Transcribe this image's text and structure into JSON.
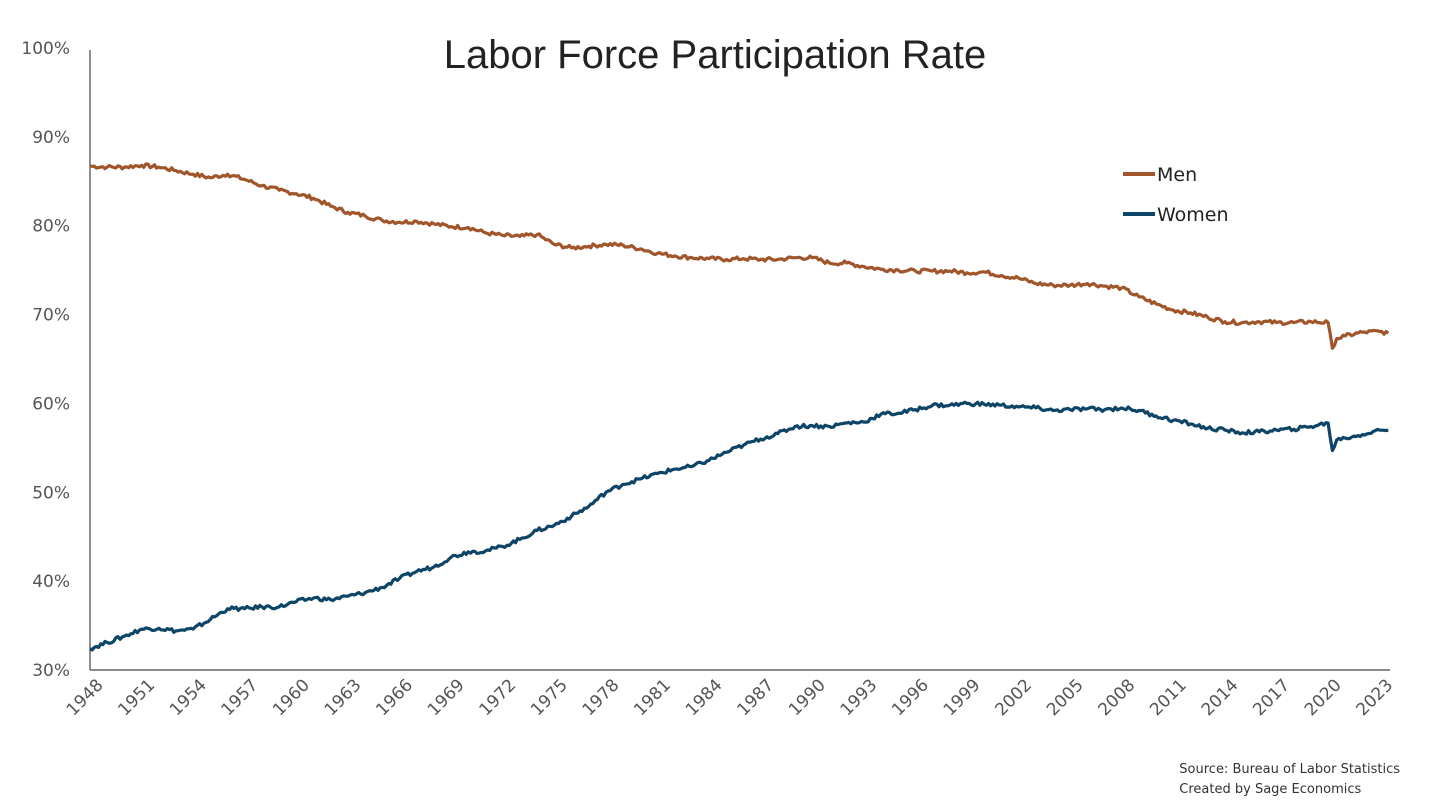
{
  "chart_data": {
    "type": "line",
    "title": "Labor Force Participation Rate",
    "xlabel": "",
    "ylabel": "",
    "xlim": [
      1948,
      2023.6
    ],
    "ylim": [
      30,
      100
    ],
    "y_ticks": [
      "30%",
      "40%",
      "50%",
      "60%",
      "70%",
      "80%",
      "90%",
      "100%"
    ],
    "x_ticks": [
      "1948",
      "1951",
      "1954",
      "1957",
      "1960",
      "1963",
      "1966",
      "1969",
      "1972",
      "1975",
      "1978",
      "1981",
      "1984",
      "1987",
      "1990",
      "1993",
      "1996",
      "1999",
      "2002",
      "2005",
      "2008",
      "2011",
      "2014",
      "2017",
      "2020",
      "2023"
    ],
    "grid": false,
    "legend": "top-right",
    "series": [
      {
        "name": "Men",
        "color": "#A0552A",
        "x": [
          1948,
          1949,
          1950,
          1951,
          1952,
          1953,
          1954,
          1955,
          1956,
          1957,
          1958,
          1959,
          1960,
          1961,
          1962,
          1963,
          1964,
          1965,
          1966,
          1967,
          1968,
          1969,
          1970,
          1971,
          1972,
          1973,
          1974,
          1975,
          1976,
          1977,
          1978,
          1979,
          1980,
          1981,
          1982,
          1983,
          1984,
          1985,
          1986,
          1987,
          1988,
          1989,
          1990,
          1991,
          1992,
          1993,
          1994,
          1995,
          1996,
          1997,
          1998,
          1999,
          2000,
          2001,
          2002,
          2003,
          2004,
          2005,
          2006,
          2007,
          2008,
          2009,
          2010,
          2011,
          2012,
          2013,
          2014,
          2015,
          2016,
          2017,
          2018,
          2019,
          2020,
          2020.25,
          2020.5,
          2021,
          2022,
          2023,
          2023.5
        ],
        "values": [
          86.7,
          86.6,
          86.6,
          86.8,
          86.6,
          86.2,
          85.8,
          85.4,
          85.8,
          85.2,
          84.5,
          84.0,
          83.6,
          83.1,
          82.2,
          81.5,
          81.1,
          80.6,
          80.4,
          80.5,
          80.2,
          79.9,
          79.8,
          79.2,
          78.9,
          78.8,
          79.0,
          77.9,
          77.5,
          77.7,
          77.9,
          77.8,
          77.4,
          76.9,
          76.6,
          76.4,
          76.3,
          76.2,
          76.3,
          76.2,
          76.2,
          76.4,
          76.4,
          75.8,
          75.8,
          75.4,
          75.1,
          75.0,
          74.9,
          74.9,
          74.9,
          74.7,
          74.8,
          74.4,
          74.1,
          73.5,
          73.3,
          73.3,
          73.5,
          73.2,
          73.0,
          72.0,
          71.2,
          70.5,
          70.2,
          69.7,
          69.2,
          69.1,
          69.2,
          69.1,
          69.1,
          69.2,
          69.1,
          66.2,
          67.3,
          67.6,
          68.0,
          68.1,
          67.9
        ]
      },
      {
        "name": "Women",
        "color": "#0E4466",
        "x": [
          1948,
          1949,
          1950,
          1951,
          1952,
          1953,
          1954,
          1955,
          1956,
          1957,
          1958,
          1959,
          1960,
          1961,
          1962,
          1963,
          1964,
          1965,
          1966,
          1967,
          1968,
          1969,
          1970,
          1971,
          1972,
          1973,
          1974,
          1975,
          1976,
          1977,
          1978,
          1979,
          1980,
          1981,
          1982,
          1983,
          1984,
          1985,
          1986,
          1987,
          1988,
          1989,
          1990,
          1991,
          1992,
          1993,
          1994,
          1995,
          1996,
          1997,
          1998,
          1999,
          2000,
          2001,
          2002,
          2003,
          2004,
          2005,
          2006,
          2007,
          2008,
          2009,
          2010,
          2011,
          2012,
          2013,
          2014,
          2015,
          2016,
          2017,
          2018,
          2019,
          2020,
          2020.25,
          2020.5,
          2021,
          2022,
          2023,
          2023.5
        ],
        "values": [
          32.4,
          33.1,
          33.8,
          34.6,
          34.7,
          34.4,
          34.6,
          35.7,
          36.9,
          36.9,
          37.1,
          37.1,
          37.7,
          38.1,
          37.9,
          38.3,
          38.7,
          39.3,
          40.3,
          41.1,
          41.6,
          42.7,
          43.3,
          43.4,
          43.9,
          44.7,
          45.7,
          46.3,
          47.3,
          48.4,
          50.0,
          50.9,
          51.5,
          52.1,
          52.6,
          52.9,
          53.6,
          54.5,
          55.3,
          56.0,
          56.6,
          57.4,
          57.5,
          57.4,
          57.8,
          57.9,
          58.8,
          58.9,
          59.3,
          59.8,
          59.8,
          60.0,
          59.9,
          59.8,
          59.6,
          59.5,
          59.2,
          59.3,
          59.4,
          59.3,
          59.5,
          59.2,
          58.6,
          58.1,
          57.7,
          57.2,
          57.0,
          56.7,
          56.8,
          57.0,
          57.1,
          57.4,
          57.8,
          54.7,
          55.9,
          56.1,
          56.5,
          57.0,
          57.0
        ]
      }
    ]
  },
  "source_note": {
    "line1": "Source: Bureau of Labor Statistics",
    "line2": "Created by Sage Economics"
  }
}
